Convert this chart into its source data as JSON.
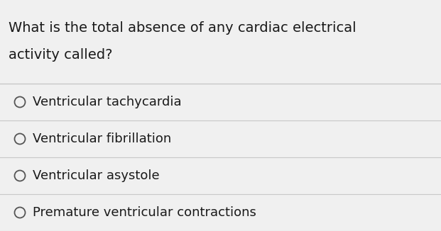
{
  "question_line1": "What is the total absence of any cardiac electrical",
  "question_line2": "activity called?",
  "options": [
    "Ventricular tachycardia",
    "Ventricular fibrillation",
    "Ventricular asystole",
    "Premature ventricular contractions"
  ],
  "bg_color": "#f0f0f0",
  "option_bg_color": "#f0f0f0",
  "question_bg_color": "#f0f0f0",
  "text_color": "#1a1a1a",
  "divider_color": "#c8c8c8",
  "question_fontsize": 14.0,
  "option_fontsize": 13.0,
  "circle_color": "#555555",
  "fig_width": 6.21,
  "fig_height": 3.26,
  "dpi": 100
}
